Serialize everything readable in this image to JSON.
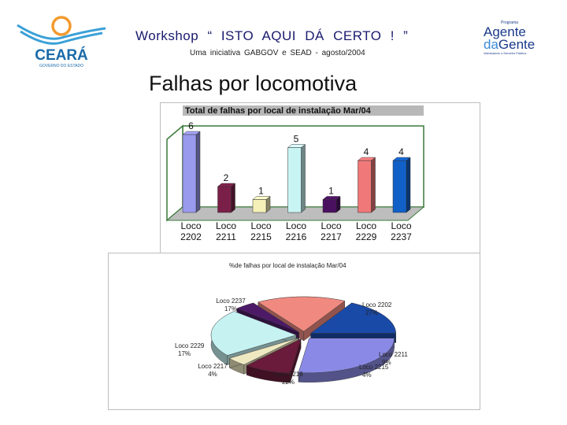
{
  "header": {
    "title": "Workshop   “ ISTO  AQUI  DÁ  CERTO !  ”",
    "subtitle": "Uma iniciativa GABGOV e SEAD   -    agosto/2004"
  },
  "logo_left": {
    "text": "CEARÁ",
    "tagline": "GOVERNO DO ESTADO"
  },
  "logo_right": {
    "small": "Programa",
    "line1": "Agente",
    "line2a": "da",
    "line2b": "Gente",
    "tagline": "Valorizando o Servidor Público"
  },
  "slide": {
    "title": "Falhas por locomotiva"
  },
  "chart_data": [
    {
      "type": "bar",
      "title": "Total de falhas por local de instalação Mar/04",
      "categories": [
        "Loco 2202",
        "Loco 2211",
        "Loco 2215",
        "Loco 2216",
        "Loco 2217",
        "Loco 2229",
        "Loco 2237"
      ],
      "values": [
        6,
        2,
        1,
        5,
        1,
        4,
        4
      ],
      "colors": [
        "#9999ee",
        "#7a2048",
        "#f5f0b8",
        "#c8f4f4",
        "#4a1060",
        "#f07878",
        "#1060c8"
      ],
      "grid": false,
      "legend": "none"
    },
    {
      "type": "pie",
      "title": "%de falhas por local de instalação Mar/04",
      "slices": [
        {
          "label": "Loco 2202",
          "pct": "27%",
          "value": 27,
          "color": "#8a8ae6"
        },
        {
          "label": "Loco 2211",
          "pct": "9%",
          "value": 9,
          "color": "#6a1a3a"
        },
        {
          "label": "Loco 2215",
          "pct": "4%",
          "value": 4,
          "color": "#efe9c2"
        },
        {
          "label": "Loco 2216",
          "pct": "22%",
          "value": 22,
          "color": "#c6f2f2"
        },
        {
          "label": "Loco 2217",
          "pct": "4%",
          "value": 4,
          "color": "#4d1a68"
        },
        {
          "label": "Loco 2229",
          "pct": "17%",
          "value": 17,
          "color": "#f08a80"
        },
        {
          "label": "Loco 2237",
          "pct": "17%",
          "value": 17,
          "color": "#1a4aa8"
        }
      ]
    }
  ]
}
